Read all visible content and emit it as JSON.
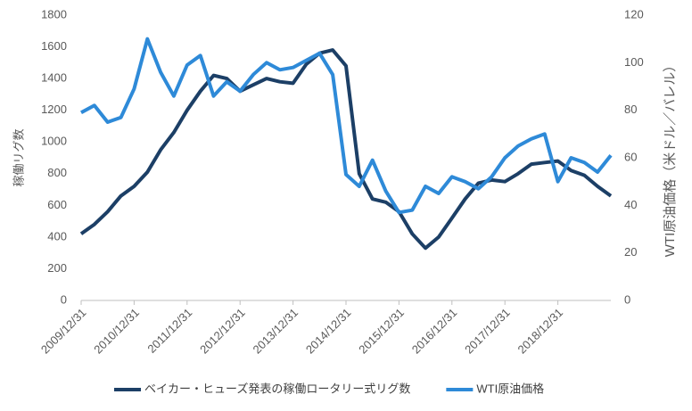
{
  "chart_data": {
    "type": "line",
    "categories": [
      "2009/12/31",
      null,
      null,
      null,
      "2010/12/31",
      null,
      null,
      null,
      "2011/12/31",
      null,
      null,
      null,
      "2012/12/31",
      null,
      null,
      null,
      "2013/12/31",
      null,
      null,
      null,
      "2014/12/31",
      null,
      null,
      null,
      "2015/12/31",
      null,
      null,
      null,
      "2016/12/31",
      null,
      null,
      null,
      "2017/12/31",
      null,
      null,
      null,
      "2018/12/31",
      null,
      null,
      null,
      null
    ],
    "series": [
      {
        "name": "ベイカー・ヒューズ発表の稼働ロータリー式リグ数",
        "color": "#1c3f66",
        "values": [
          420,
          480,
          560,
          660,
          720,
          810,
          950,
          1060,
          1200,
          1320,
          1420,
          1400,
          1320,
          1360,
          1400,
          1380,
          1370,
          1490,
          1560,
          1580,
          1480,
          800,
          640,
          620,
          560,
          420,
          330,
          400,
          520,
          640,
          740,
          760,
          750,
          800,
          860,
          870,
          880,
          820,
          790,
          720,
          660
        ]
      },
      {
        "name": "WTI原油価格",
        "color": "#2e8ad8",
        "axis": "y2",
        "values": [
          79,
          82,
          75,
          77,
          89,
          110,
          96,
          86,
          99,
          103,
          86,
          92,
          88,
          95,
          100,
          97,
          98,
          101,
          104,
          95,
          53,
          48,
          59,
          46,
          37,
          38,
          48,
          45,
          52,
          50,
          47,
          52,
          60,
          65,
          68,
          70,
          50,
          60,
          58,
          54,
          61
        ]
      }
    ],
    "ylabel": "稼働リグ数",
    "y2label": "WTI原油価格（米ドル／バレル）",
    "ylim": [
      0,
      1800
    ],
    "yticks": [
      0,
      200,
      400,
      600,
      800,
      1000,
      1200,
      1400,
      1600,
      1800
    ],
    "y2lim": [
      0,
      120
    ],
    "y2ticks": [
      0,
      20,
      40,
      60,
      80,
      100,
      120
    ],
    "grid": false
  }
}
